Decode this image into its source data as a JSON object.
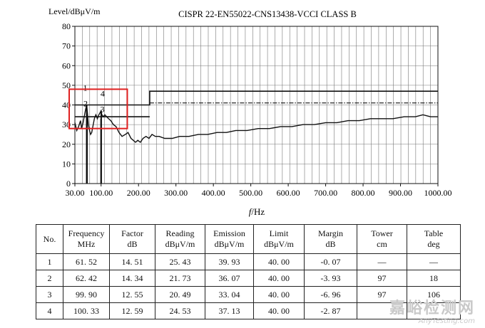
{
  "chart_data": {
    "type": "line",
    "title": "CISPR 22-EN55022-CNS13438-VCCI CLASS B",
    "ylabel": "Level/dBμV/m",
    "xlabel_italic": "f",
    "xlabel_unit": "/Hz",
    "xlim": [
      30,
      1000
    ],
    "ylim": [
      0,
      80
    ],
    "x_ticks": [
      "30.00",
      "100.00",
      "200.00",
      "300.00",
      "400.00",
      "500.00",
      "600.00",
      "700.00",
      "800.00",
      "900.00",
      "1000.00"
    ],
    "y_ticks": [
      "0",
      "10",
      "20",
      "30",
      "40",
      "50",
      "60",
      "70",
      "80"
    ],
    "grid": true,
    "limit_lines": [
      {
        "style": "solid",
        "points": [
          [
            30,
            40
          ],
          [
            230,
            40
          ],
          [
            230,
            47
          ],
          [
            1000,
            47
          ]
        ]
      },
      {
        "style": "dashdot",
        "points": [
          [
            230,
            41
          ],
          [
            1000,
            41
          ]
        ]
      },
      {
        "style": "solid",
        "points": [
          [
            30,
            34
          ],
          [
            230,
            34
          ]
        ]
      }
    ],
    "series": [
      {
        "points": [
          [
            30,
            31
          ],
          [
            35,
            27
          ],
          [
            40,
            29
          ],
          [
            45,
            32
          ],
          [
            48,
            28
          ],
          [
            52,
            31
          ],
          [
            56,
            35
          ],
          [
            59,
            38
          ],
          [
            61.5,
            40
          ],
          [
            63,
            37
          ],
          [
            66,
            30
          ],
          [
            69,
            27
          ],
          [
            72,
            25
          ],
          [
            75,
            26
          ],
          [
            78,
            29
          ],
          [
            82,
            33
          ],
          [
            86,
            35
          ],
          [
            90,
            33
          ],
          [
            94,
            35
          ],
          [
            97,
            36
          ],
          [
            99.9,
            37
          ],
          [
            102,
            35
          ],
          [
            106,
            34
          ],
          [
            110,
            35
          ],
          [
            115,
            34
          ],
          [
            120,
            33
          ],
          [
            126,
            32
          ],
          [
            133,
            30
          ],
          [
            140,
            29
          ],
          [
            148,
            26
          ],
          [
            156,
            24
          ],
          [
            165,
            25
          ],
          [
            172,
            26
          ],
          [
            180,
            23
          ],
          [
            186,
            22
          ],
          [
            192,
            21
          ],
          [
            198,
            22
          ],
          [
            205,
            21
          ],
          [
            212,
            23
          ],
          [
            220,
            24
          ],
          [
            228,
            23
          ],
          [
            236,
            25
          ],
          [
            245,
            24
          ],
          [
            255,
            24
          ],
          [
            270,
            23
          ],
          [
            290,
            23
          ],
          [
            310,
            24
          ],
          [
            335,
            24
          ],
          [
            360,
            25
          ],
          [
            385,
            25
          ],
          [
            410,
            26
          ],
          [
            435,
            26
          ],
          [
            460,
            27
          ],
          [
            490,
            27
          ],
          [
            520,
            28
          ],
          [
            550,
            28
          ],
          [
            580,
            29
          ],
          [
            610,
            29
          ],
          [
            640,
            30
          ],
          [
            670,
            30
          ],
          [
            700,
            31
          ],
          [
            730,
            31
          ],
          [
            760,
            32
          ],
          [
            790,
            32
          ],
          [
            820,
            33
          ],
          [
            850,
            33
          ],
          [
            880,
            33
          ],
          [
            910,
            34
          ],
          [
            940,
            34
          ],
          [
            960,
            35
          ],
          [
            980,
            34
          ],
          [
            1000,
            34
          ]
        ]
      }
    ],
    "markers": [
      {
        "x": 61.52,
        "y": 39.93,
        "label": "1"
      },
      {
        "x": 62.42,
        "y": 36.07,
        "label": "2"
      },
      {
        "x": 99.9,
        "y": 33.04,
        "label": "3"
      },
      {
        "x": 100.33,
        "y": 37.13,
        "label": "4"
      }
    ],
    "highlight_box": {
      "x0": 30,
      "x1": 170,
      "y0": 28,
      "y1": 48,
      "color": "#e02020"
    }
  },
  "table": {
    "headers": [
      [
        "No."
      ],
      [
        "Frequency",
        "MHz"
      ],
      [
        "Factor",
        "dB"
      ],
      [
        "Reading",
        "dBμV/m"
      ],
      [
        "Emission",
        "dBμV/m"
      ],
      [
        "Limit",
        "dBμV/m"
      ],
      [
        "Margin",
        "dB"
      ],
      [
        "Tower",
        "cm"
      ],
      [
        "Table",
        "deg"
      ]
    ],
    "rows": [
      [
        "1",
        "61. 52",
        "14. 51",
        "25. 43",
        "39. 93",
        "40. 00",
        "-0. 07",
        "—",
        "—"
      ],
      [
        "2",
        "62. 42",
        "14. 34",
        "21. 73",
        "36. 07",
        "40. 00",
        "-3. 93",
        "97",
        "18"
      ],
      [
        "3",
        "99. 90",
        "12. 55",
        "20. 49",
        "33. 04",
        "40. 00",
        "-6. 96",
        "97",
        "106"
      ],
      [
        "4",
        "100. 33",
        "12. 59",
        "24. 53",
        "37. 13",
        "40. 00",
        "-2. 87",
        "",
        ""
      ]
    ]
  },
  "watermark": {
    "cn": "嘉峪检测网",
    "en": "AnyTesting.com"
  }
}
